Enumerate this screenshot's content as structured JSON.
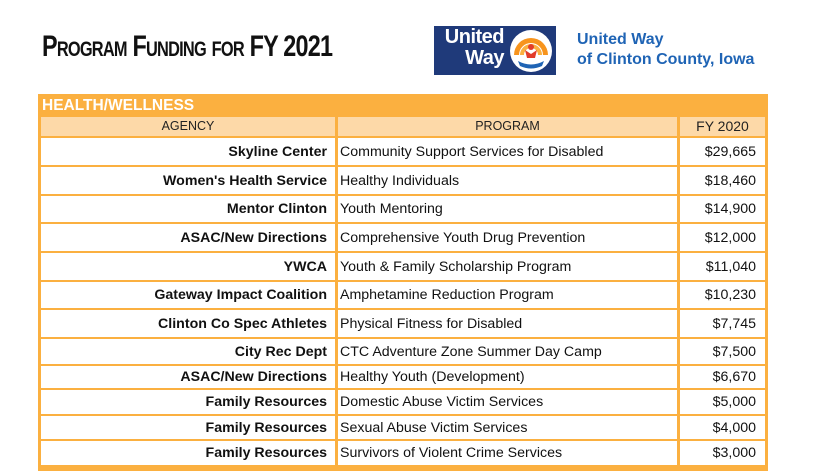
{
  "title": "Program Funding for FY 2021",
  "logo": {
    "line1": "United",
    "line2": "Way"
  },
  "org": {
    "line1": "United Way",
    "line2": "of Clinton County, Iowa"
  },
  "colors": {
    "header_orange": "#fbb040",
    "subheader": "#fdd9a8",
    "logo_blue": "#1f3a7a",
    "org_blue": "#1f64b5",
    "logo_orange": "#f7941d"
  },
  "table": {
    "section": "HEALTH/WELLNESS",
    "headers": {
      "agency": "AGENCY",
      "program": "PROGRAM",
      "fy": "FY 2020"
    },
    "rows": [
      {
        "agency": "Skyline Center",
        "program": "Community Support Services for Disabled",
        "amount": "$29,665"
      },
      {
        "agency": "Women's Health Service",
        "program": "Healthy Individuals",
        "amount": "$18,460"
      },
      {
        "agency": "Mentor Clinton",
        "program": "Youth Mentoring",
        "amount": "$14,900"
      },
      {
        "agency": "ASAC/New Directions",
        "program": "Comprehensive Youth Drug Prevention",
        "amount": "$12,000"
      },
      {
        "agency": "YWCA",
        "program": "Youth & Family Scholarship Program",
        "amount": "$11,040"
      },
      {
        "agency": "Gateway Impact Coalition",
        "program": "Amphetamine Reduction Program",
        "amount": "$10,230"
      },
      {
        "agency": "Clinton Co Spec Athletes",
        "program": "Physical Fitness for Disabled",
        "amount": "$7,745"
      },
      {
        "agency": "City Rec Dept",
        "program": "CTC Adventure Zone Summer Day Camp",
        "amount": "$7,500"
      },
      {
        "agency": "ASAC/New Directions",
        "program": "Healthy Youth (Development)",
        "amount": "$6,670"
      },
      {
        "agency": "Family Resources",
        "program": "Domestic Abuse Victim Services",
        "amount": "$5,000"
      },
      {
        "agency": "Family Resources",
        "program": "Sexual Abuse Victim Services",
        "amount": "$4,000"
      },
      {
        "agency": "Family Resources",
        "program": "Survivors of Violent Crime Services",
        "amount": "$3,000"
      }
    ]
  }
}
